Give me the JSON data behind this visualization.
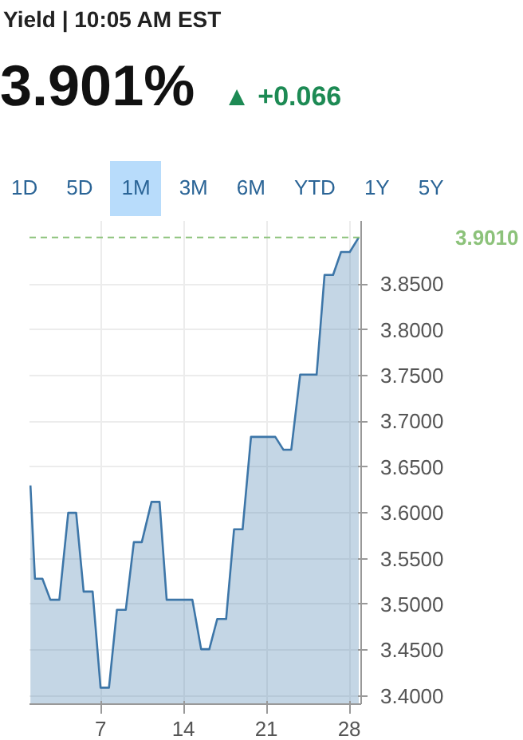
{
  "chart_data": {
    "type": "area",
    "title": "Yield | 10:05 AM EST",
    "subtitle": "3.901%",
    "annotations": [
      "▲ +0.066",
      "1D",
      "5D",
      "1M",
      "3M",
      "6M",
      "YTD",
      "1Y",
      "5Y"
    ],
    "x": [
      1.08,
      1.46,
      2.09,
      2.76,
      3.52,
      4.27,
      4.94,
      5.57,
      6.33,
      7.0,
      7.71,
      8.38,
      9.13,
      9.81,
      10.48,
      11.3,
      11.98,
      12.58,
      14.75,
      15.49,
      16.18,
      16.85,
      17.6,
      18.27,
      18.99,
      19.7,
      21.75,
      22.43,
      23.1,
      23.85,
      25.24,
      25.91,
      26.63,
      27.3,
      28.04,
      28.8
    ],
    "series": [
      {
        "color": "#3d76a8",
        "values": [
          3.63,
          3.528,
          3.528,
          3.505,
          3.505,
          3.6,
          3.6,
          3.514,
          3.514,
          3.409,
          3.409,
          3.494,
          3.494,
          3.568,
          3.568,
          3.612,
          3.612,
          3.505,
          3.505,
          3.451,
          3.451,
          3.484,
          3.484,
          3.582,
          3.582,
          3.683,
          3.683,
          3.669,
          3.669,
          3.751,
          3.751,
          3.86,
          3.86,
          3.885,
          3.885,
          3.901
        ]
      }
    ],
    "xlim": [
      1,
      29
    ],
    "xticks": [
      7,
      14,
      21,
      28
    ],
    "ylim": [
      3.391,
      3.919
    ],
    "yticks": [
      {
        "value": 3.4,
        "label": "3.4000"
      },
      {
        "value": 3.45,
        "label": "3.4500"
      },
      {
        "value": 3.5,
        "label": "3.5000"
      },
      {
        "value": 3.55,
        "label": "3.5500"
      },
      {
        "value": 3.6,
        "label": "3.6000"
      },
      {
        "value": 3.65,
        "label": "3.6500"
      },
      {
        "value": 3.7,
        "label": "3.7000"
      },
      {
        "value": 3.75,
        "label": "3.7500"
      },
      {
        "value": 3.8,
        "label": "3.8000"
      },
      {
        "value": 3.85,
        "label": "3.8500"
      }
    ],
    "ref_lines": [
      {
        "axis": "y",
        "value": 3.901,
        "label": "3.9010",
        "color": "#8cc27a",
        "line_style": "dashed"
      }
    ],
    "grid": true
  }
}
